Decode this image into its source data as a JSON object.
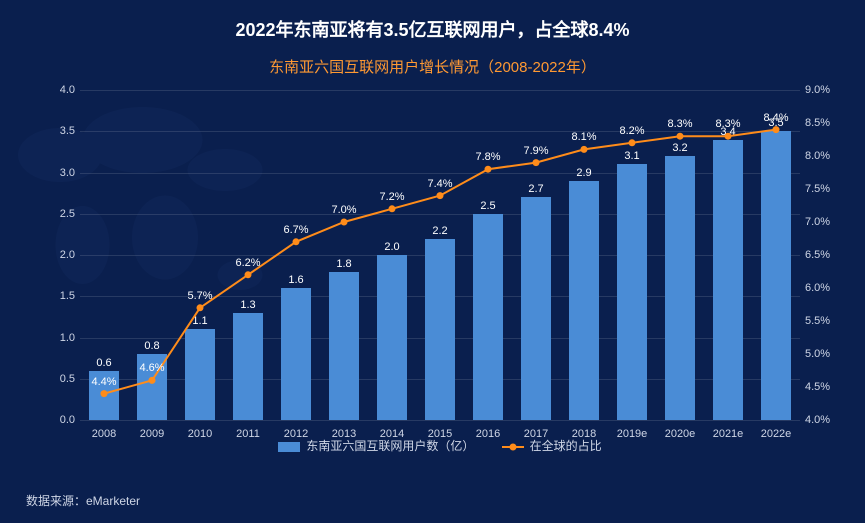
{
  "title": "2022年东南亚将有3.5亿互联网用户，占全球8.4%",
  "subtitle": "东南亚六国互联网用户增长情况（2008-2022年）",
  "source": "数据来源：eMarketer",
  "chart": {
    "type": "bar+line",
    "background_color": "#0a1f4e",
    "grid_color": "rgba(255,255,255,0.12)",
    "text_color": "#cfd6e6",
    "title_fontsize": 18,
    "subtitle_fontsize": 15,
    "subtitle_color": "#ff9933",
    "label_fontsize": 11,
    "categories": [
      "2008",
      "2009",
      "2010",
      "2011",
      "2012",
      "2013",
      "2014",
      "2015",
      "2016",
      "2017",
      "2018",
      "2019e",
      "2020e",
      "2021e",
      "2022e"
    ],
    "bars": {
      "values": [
        0.6,
        0.8,
        1.1,
        1.3,
        1.6,
        1.8,
        2.0,
        2.2,
        2.5,
        2.7,
        2.9,
        3.1,
        3.2,
        3.4,
        3.5
      ],
      "labels": [
        "0.6",
        "0.8",
        "1.1",
        "1.3",
        "1.6",
        "1.8",
        "2.0",
        "2.2",
        "2.5",
        "2.7",
        "2.9",
        "3.1",
        "3.2",
        "3.4",
        "3.5"
      ],
      "color": "#4a8cd6",
      "bar_width_ratio": 0.62,
      "y_axis": {
        "min": 0.0,
        "max": 4.0,
        "step": 0.5,
        "ticks": [
          "0.0",
          "0.5",
          "1.0",
          "1.5",
          "2.0",
          "2.5",
          "3.0",
          "3.5",
          "4.0"
        ]
      }
    },
    "line": {
      "values": [
        4.4,
        4.6,
        5.7,
        6.2,
        6.7,
        7.0,
        7.2,
        7.4,
        7.8,
        7.9,
        8.1,
        8.2,
        8.3,
        8.3,
        8.4
      ],
      "labels": [
        "4.4%",
        "4.6%",
        "5.7%",
        "6.2%",
        "6.7%",
        "7.0%",
        "7.2%",
        "7.4%",
        "7.8%",
        "7.9%",
        "8.1%",
        "8.2%",
        "8.3%",
        "8.3%",
        "8.4%"
      ],
      "color": "#ff8c1a",
      "line_width": 2,
      "marker_size": 7,
      "y_axis": {
        "min": 4.0,
        "max": 9.0,
        "step": 0.5,
        "ticks": [
          "4.0%",
          "4.5%",
          "5.0%",
          "5.5%",
          "6.0%",
          "6.5%",
          "7.0%",
          "7.5%",
          "8.0%",
          "8.5%",
          "9.0%"
        ]
      }
    },
    "legend": {
      "bar_label": "东南亚六国互联网用户数（亿）",
      "line_label": "在全球的占比"
    }
  }
}
